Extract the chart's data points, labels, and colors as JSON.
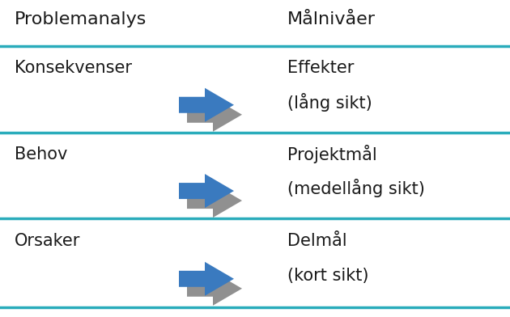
{
  "bg_color": "#ffffff",
  "line_color": "#2aacbb",
  "text_color": "#1a1a1a",
  "header_left": "Problemanalys",
  "header_right": "Målnivåer",
  "rows": [
    {
      "left": "Konsekvenser",
      "right_line1": "Effekter",
      "right_line2": "(lång sikt)"
    },
    {
      "left": "Behov",
      "right_line1": "Projektmål",
      "right_line2": "(medellång sikt)"
    },
    {
      "left": "Orsaker",
      "right_line1": "Delmål",
      "right_line2": "(kort sikt)"
    }
  ],
  "arrow_blue": "#3a7abf",
  "arrow_gray": "#909090",
  "header_fontsize": 16,
  "row_fontsize": 15,
  "fig_width": 6.3,
  "fig_height": 3.92,
  "dpi": 100
}
